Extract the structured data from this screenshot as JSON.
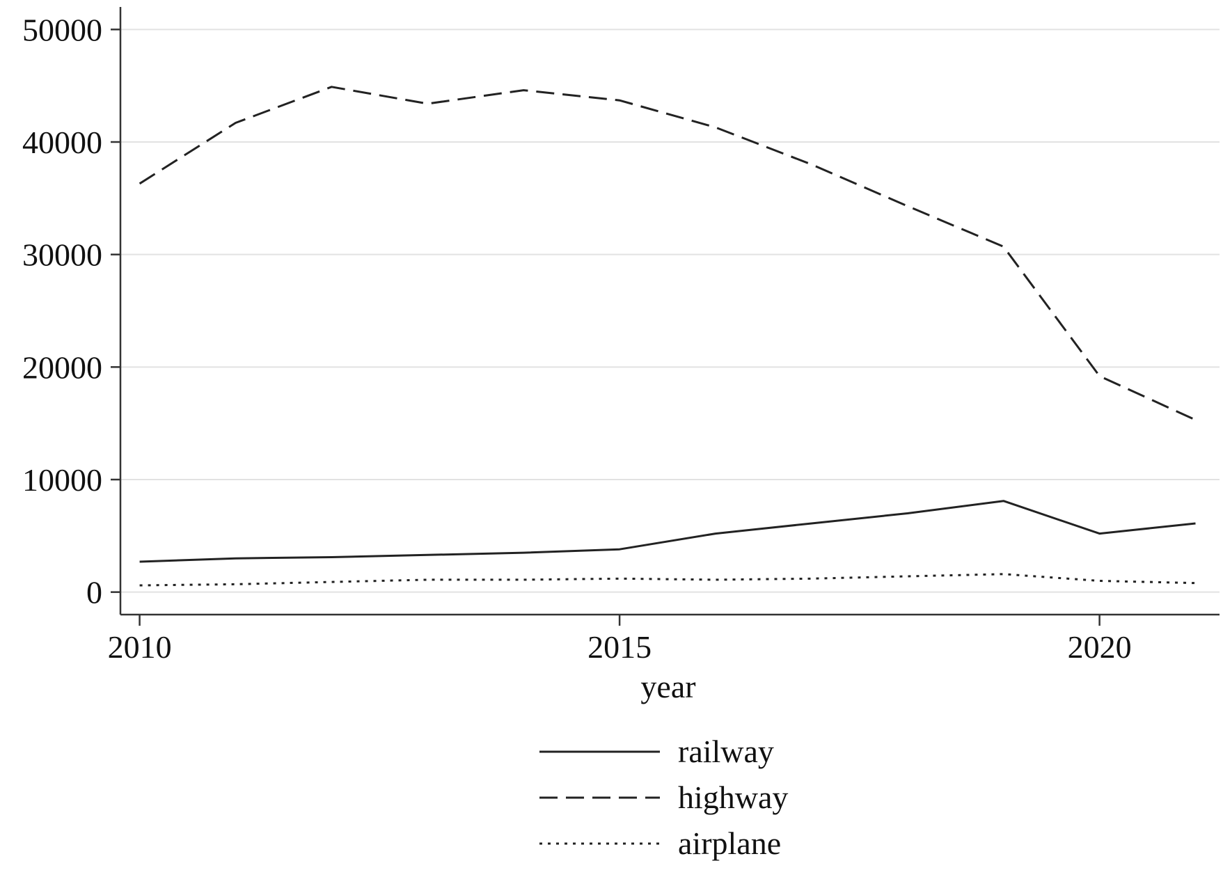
{
  "chart_data": {
    "type": "line",
    "title": "",
    "xlabel": "year",
    "ylabel": "",
    "x": [
      2010,
      2011,
      2012,
      2013,
      2014,
      2015,
      2016,
      2017,
      2018,
      2019,
      2020,
      2021
    ],
    "xlim": [
      2009.8,
      2021.25
    ],
    "ylim": [
      -2000,
      52000
    ],
    "xticks": [
      2010,
      2015,
      2020
    ],
    "yticks": [
      0,
      10000,
      20000,
      30000,
      40000,
      50000
    ],
    "xtick_labels": [
      "2010",
      "2015",
      "2020"
    ],
    "ytick_labels": [
      "0",
      "10000",
      "20000",
      "30000",
      "40000",
      "50000"
    ],
    "grid": "horizontal",
    "legend_position": "bottom",
    "series": [
      {
        "name": "railway",
        "style": "solid",
        "values": [
          2700,
          3000,
          3100,
          3300,
          3500,
          3800,
          5200,
          6100,
          7000,
          8100,
          5200,
          6100
        ]
      },
      {
        "name": "highway",
        "style": "dashed",
        "values": [
          36300,
          41700,
          44900,
          43400,
          44600,
          43700,
          41300,
          38000,
          34300,
          30700,
          19200,
          15300
        ]
      },
      {
        "name": "airplane",
        "style": "dotted",
        "values": [
          600,
          700,
          900,
          1100,
          1100,
          1200,
          1100,
          1200,
          1400,
          1600,
          1000,
          800
        ]
      }
    ],
    "colors": {
      "line": "#222222",
      "grid": "#e2e2e2",
      "axis": "#333333"
    }
  }
}
